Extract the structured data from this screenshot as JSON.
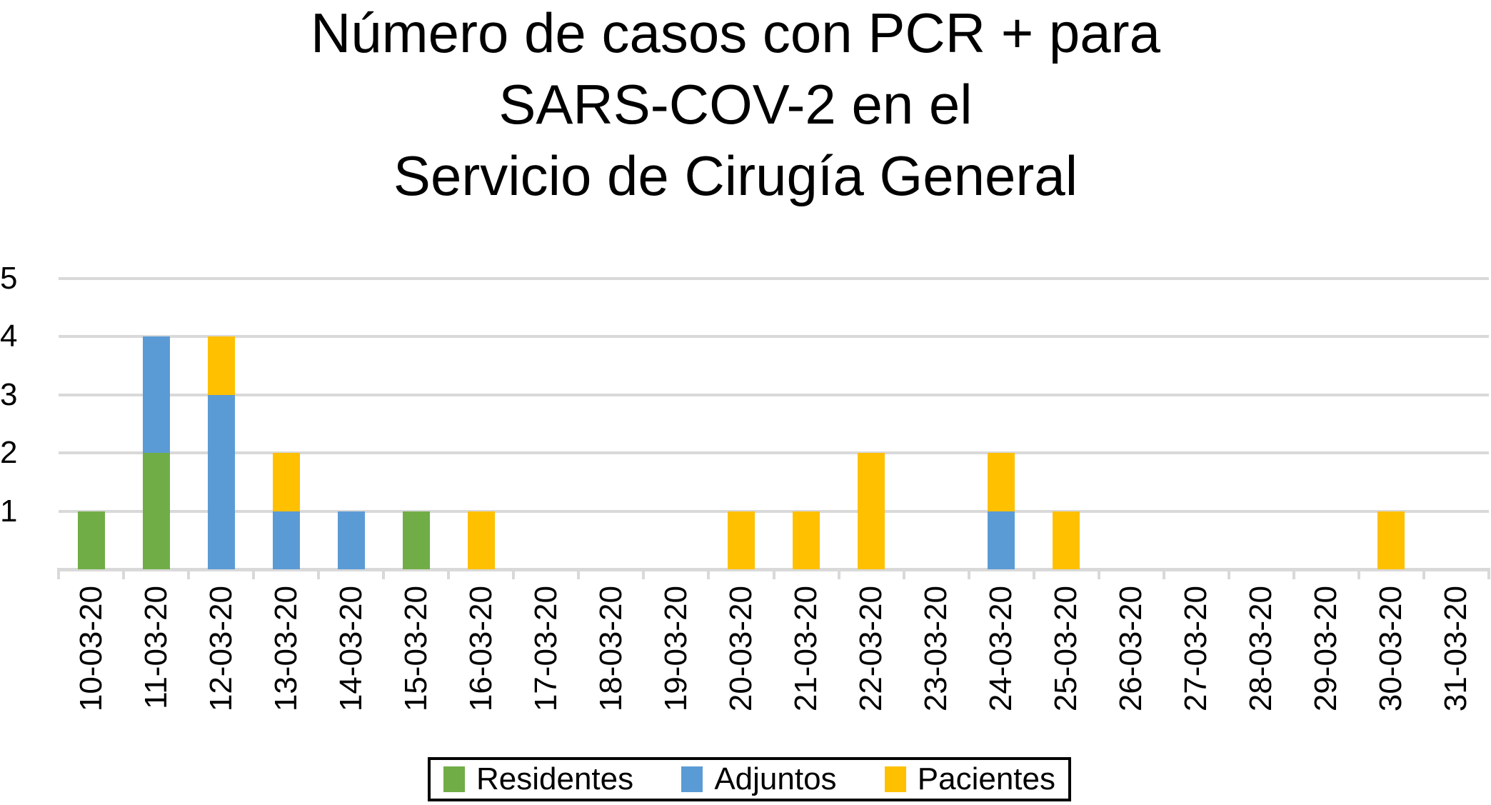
{
  "title": {
    "lines": [
      "Número de casos con PCR + para",
      "SARS-COV-2 en el",
      "Servicio de Cirugía General"
    ]
  },
  "chart_data": {
    "type": "bar",
    "stacked": true,
    "title": "Número de casos con PCR + para SARS-COV-2 en el Servicio de Cirugía General",
    "xlabel": "",
    "ylabel": "",
    "ylim": [
      0,
      5
    ],
    "yticks": [
      1,
      2,
      3,
      4,
      5
    ],
    "grid": true,
    "legend_position": "bottom",
    "background": "#FFFFFF",
    "gridline_color": "#D9D9D9",
    "text_color": "#000000",
    "categories": [
      "10-03-20",
      "11-03-20",
      "12-03-20",
      "13-03-20",
      "14-03-20",
      "15-03-20",
      "16-03-20",
      "17-03-20",
      "18-03-20",
      "19-03-20",
      "20-03-20",
      "21-03-20",
      "22-03-20",
      "23-03-20",
      "24-03-20",
      "25-03-20",
      "26-03-20",
      "27-03-20",
      "28-03-20",
      "29-03-20",
      "30-03-20",
      "31-03-20"
    ],
    "series": [
      {
        "name": "Residentes",
        "color": "#70AD47",
        "values": [
          1,
          2,
          0,
          0,
          0,
          1,
          0,
          0,
          0,
          0,
          0,
          0,
          0,
          0,
          0,
          0,
          0,
          0,
          0,
          0,
          0,
          0
        ]
      },
      {
        "name": "Adjuntos",
        "color": "#5B9BD5",
        "values": [
          0,
          2,
          3,
          1,
          1,
          0,
          0,
          0,
          0,
          0,
          0,
          0,
          0,
          0,
          1,
          0,
          0,
          0,
          0,
          0,
          0,
          0
        ]
      },
      {
        "name": "Pacientes",
        "color": "#FFC000",
        "values": [
          0,
          0,
          1,
          1,
          0,
          0,
          1,
          0,
          0,
          0,
          1,
          1,
          2,
          0,
          1,
          1,
          0,
          0,
          0,
          0,
          1,
          0
        ]
      }
    ]
  },
  "legend": {
    "items": [
      {
        "label": "Residentes",
        "color": "#70AD47"
      },
      {
        "label": "Adjuntos",
        "color": "#5B9BD5"
      },
      {
        "label": "Pacientes",
        "color": "#FFC000"
      }
    ]
  }
}
